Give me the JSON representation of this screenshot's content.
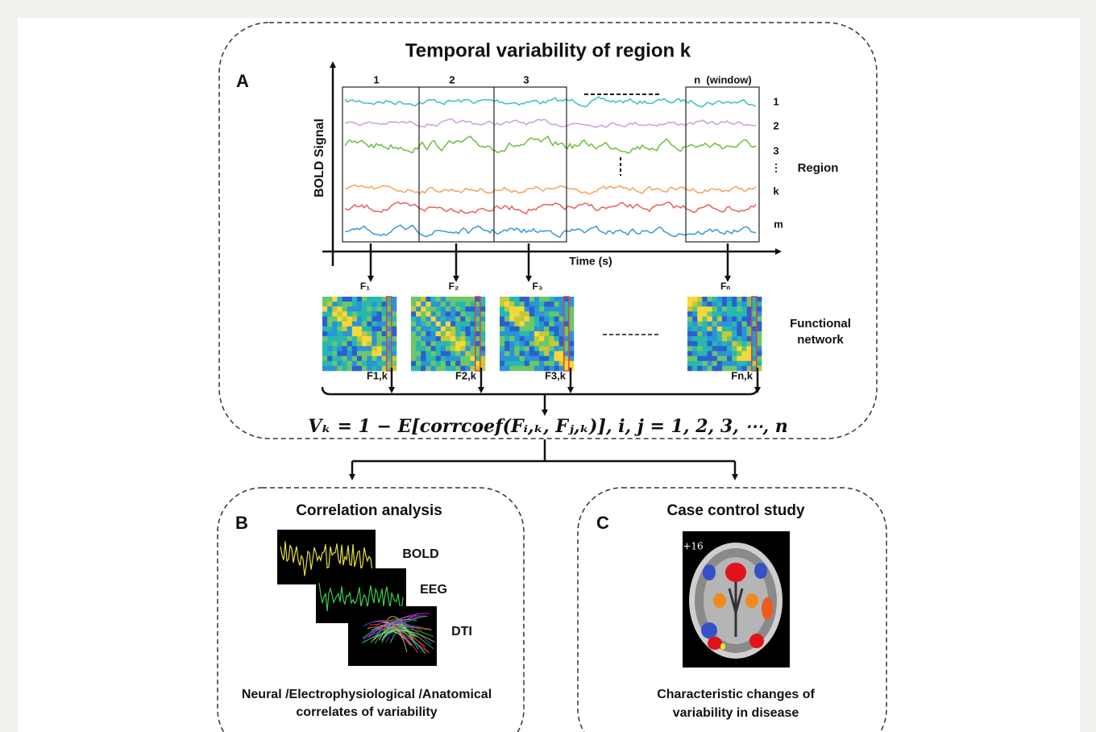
{
  "panel_a": {
    "label": "A",
    "title": "Temporal variability of region k",
    "y_axis_label": "BOLD Signal",
    "x_axis_label": "Time (s)",
    "windows": [
      "1",
      "2",
      "3",
      "n  (window)"
    ],
    "regions": [
      "1",
      "2",
      "3",
      "⋮",
      "k",
      "m"
    ],
    "region_label": "Region",
    "networks": [
      "F₁",
      "F₂",
      "F₃",
      "Fₙ"
    ],
    "network_columns": [
      "F1,k",
      "F2,k",
      "F3,k",
      "Fn,k"
    ],
    "functional_network_label": [
      "Functional",
      "network"
    ],
    "formula": "Vₖ = 1 − E[corrcoef(Fᵢ,ₖ, Fⱼ,ₖ)], i, j = 1, 2, 3, ⋯, n"
  },
  "panel_b": {
    "label": "B",
    "title": "Correlation analysis",
    "modalities": [
      "BOLD",
      "EEG",
      "DTI"
    ],
    "caption": [
      "Neural /Electrophysiological /Anatomical",
      "correlates of variability"
    ]
  },
  "panel_c": {
    "label": "C",
    "title": "Case control study",
    "slice_label": "+16",
    "caption": [
      "Characteristic changes of",
      "variability in disease"
    ]
  }
}
